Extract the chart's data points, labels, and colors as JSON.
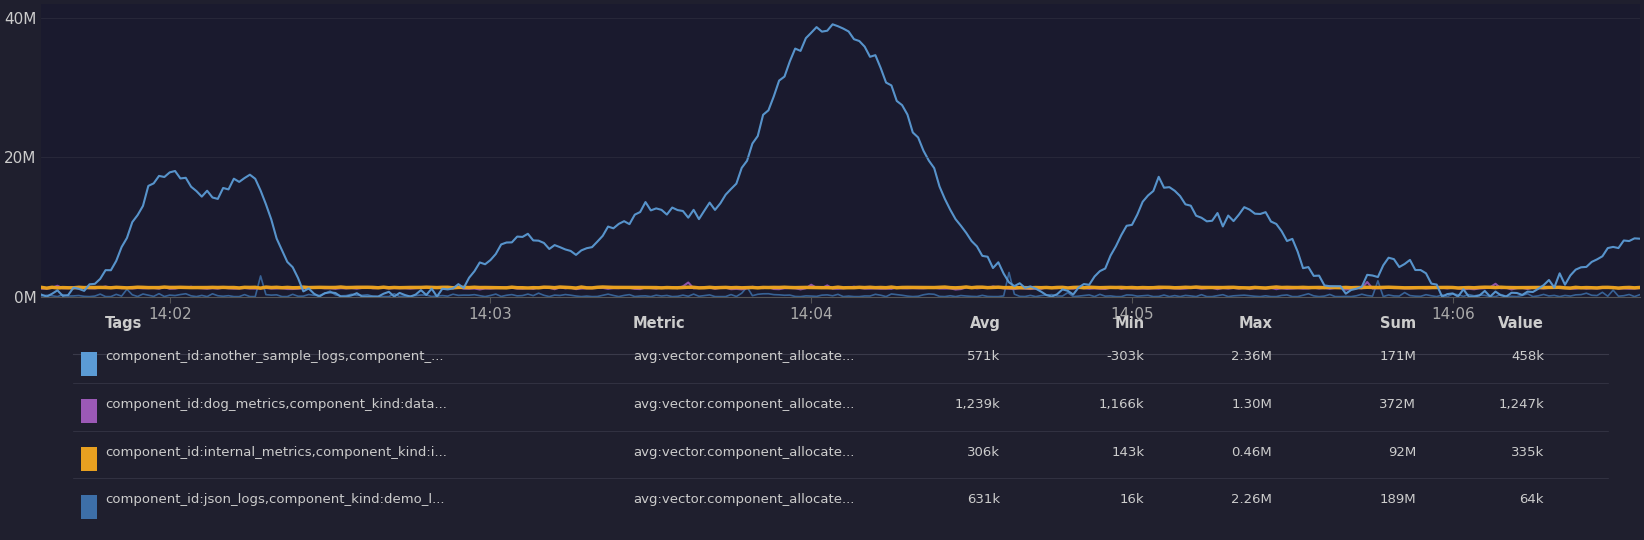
{
  "bg_color": "#1f1f2e",
  "chart_bg": "#1a1a2e",
  "yticks": [
    "0M",
    "20M",
    "40M"
  ],
  "ytick_vals": [
    0,
    20000000,
    40000000
  ],
  "ymax": 42000000,
  "xticks": [
    "14:02",
    "14:03",
    "14:04",
    "14:05",
    "14:06"
  ],
  "grid_color": "#3a3a4a",
  "series": [
    {
      "label": "component_id:another_sample_logs,component_...",
      "color": "#5b9bd5",
      "linewidth": 1.5
    },
    {
      "label": "component_id:dog_metrics,component_kind:data...",
      "color": "#9b59b6",
      "linewidth": 1.5
    },
    {
      "label": "component_id:internal_metrics,component_kind:i...",
      "color": "#e8a020",
      "linewidth": 2.5
    },
    {
      "label": "component_id:json_logs,component_kind:demo_l...",
      "color": "#3d6fa8",
      "linewidth": 1.2
    }
  ],
  "table_headers": [
    "Tags",
    "Metric",
    "Avg",
    "Min",
    "Max",
    "Sum",
    "Value"
  ],
  "table_tags": [
    "component_id:another_sample_logs,component_...",
    "component_id:dog_metrics,component_kind:data...",
    "component_id:internal_metrics,component_kind:i...",
    "component_id:json_logs,component_kind:demo_l..."
  ],
  "table_metric": [
    "avg:vector.component_allocate...",
    "avg:vector.component_allocate...",
    "avg:vector.component_allocate...",
    "avg:vector.component_allocate..."
  ],
  "table_avg": [
    "571k",
    "1,239k",
    "306k",
    "631k"
  ],
  "table_min": [
    "-303k",
    "1,166k",
    "143k",
    "16k"
  ],
  "table_max": [
    "2.36M",
    "1.30M",
    "0.46M",
    "2.26M"
  ],
  "table_sum": [
    "171M",
    "372M",
    "92M",
    "189M"
  ],
  "table_value": [
    "458k",
    "1,247k",
    "335k",
    "64k"
  ]
}
